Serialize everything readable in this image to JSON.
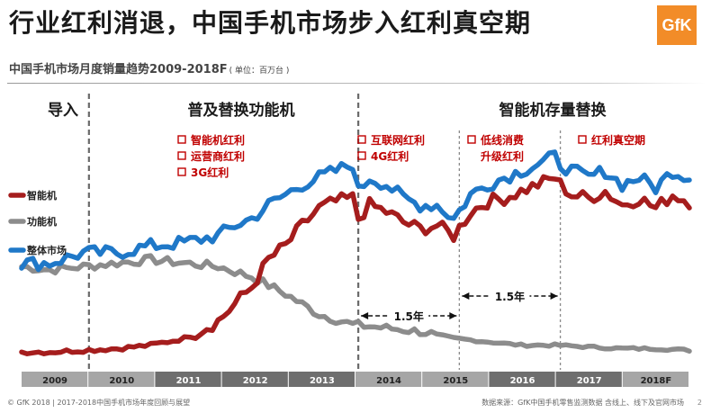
{
  "header": {
    "title": "行业红利消退，中国手机市场步入红利真空期",
    "subtitle": "中国手机市场月度销量趋势2009-2018F",
    "unit": "( 单位：百万台 )",
    "logo_text": "GfK"
  },
  "footer": {
    "left": "© GfK 2018 | 2017-2018中国手机市场年度回顾与展望",
    "right": "数据来源：GfK中国手机零售监测数据 含线上、线下及官网市场",
    "page": "2"
  },
  "phases": [
    "导入",
    "普及替换功能机",
    "智能机存量替换"
  ],
  "drivers": [
    {
      "items": [
        "智能机红利",
        "运营商红利",
        "3G红利"
      ]
    },
    {
      "items": [
        "互联网红利",
        "4G红利"
      ]
    },
    {
      "items": [
        "低线消费",
        "升级红利"
      ]
    },
    {
      "items": [
        "红利真空期"
      ]
    }
  ],
  "intervals": [
    "1.5年",
    "1.5年"
  ],
  "colors": {
    "smart": "#a51d1d",
    "feature": "#8c8c8c",
    "total": "#1f78c8",
    "accent": "#c00000",
    "axis_dark": "#6e6e6e",
    "axis_light": "#a6a6a6"
  },
  "chart_data": {
    "type": "line",
    "title": "中国手机市场月度销量趋势2009-2018F",
    "x_categories": [
      "2009",
      "2010",
      "2011",
      "2012",
      "2013",
      "2014",
      "2015",
      "2016",
      "2017",
      "2018F"
    ],
    "y_note": "estimated monthly sales (millions of units); no y-axis printed",
    "ylim": [
      0,
      65
    ],
    "grid": false,
    "legend_position": "left",
    "phase_dividers": [
      "2010-01",
      "2014-01"
    ],
    "annotation_dividers": [
      "2015-07",
      "2017-01"
    ],
    "series": [
      {
        "name": "智能机",
        "points": [
          [
            "2009-01",
            1
          ],
          [
            "2009-06",
            1
          ],
          [
            "2009-12",
            1.5
          ],
          [
            "2010-06",
            2
          ],
          [
            "2010-12",
            3
          ],
          [
            "2011-06",
            5
          ],
          [
            "2011-12",
            10
          ],
          [
            "2012-03",
            15
          ],
          [
            "2012-06",
            20
          ],
          [
            "2012-09",
            28
          ],
          [
            "2012-12",
            32
          ],
          [
            "2013-03",
            38
          ],
          [
            "2013-06",
            43
          ],
          [
            "2013-09",
            45
          ],
          [
            "2013-12",
            46
          ],
          [
            "2014-01",
            40
          ],
          [
            "2014-03",
            44
          ],
          [
            "2014-06",
            42
          ],
          [
            "2014-09",
            39
          ],
          [
            "2014-12",
            37
          ],
          [
            "2015-03",
            38
          ],
          [
            "2015-06",
            35
          ],
          [
            "2015-09",
            42
          ],
          [
            "2015-12",
            45
          ],
          [
            "2016-03",
            46
          ],
          [
            "2016-06",
            48
          ],
          [
            "2016-09",
            50
          ],
          [
            "2016-12",
            52
          ],
          [
            "2017-01",
            50
          ],
          [
            "2017-03",
            47
          ],
          [
            "2017-06",
            46
          ],
          [
            "2017-09",
            48
          ],
          [
            "2017-12",
            44
          ],
          [
            "2018-03",
            46
          ],
          [
            "2018-06",
            43
          ],
          [
            "2018-09",
            47
          ],
          [
            "2018-12",
            45
          ]
        ]
      },
      {
        "name": "功能机",
        "points": [
          [
            "2009-01",
            26
          ],
          [
            "2009-06",
            25
          ],
          [
            "2009-12",
            26
          ],
          [
            "2010-06",
            27
          ],
          [
            "2010-12",
            28
          ],
          [
            "2011-06",
            27
          ],
          [
            "2011-12",
            26
          ],
          [
            "2012-06",
            23
          ],
          [
            "2012-12",
            18
          ],
          [
            "2013-06",
            12
          ],
          [
            "2013-12",
            9
          ],
          [
            "2014-06",
            8
          ],
          [
            "2014-12",
            7
          ],
          [
            "2015-06",
            5
          ],
          [
            "2015-12",
            4
          ],
          [
            "2016-06",
            3
          ],
          [
            "2016-12",
            3
          ],
          [
            "2017-06",
            2.5
          ],
          [
            "2017-12",
            2
          ],
          [
            "2018-06",
            2
          ],
          [
            "2018-12",
            1.5
          ]
        ]
      },
      {
        "name": "整体市场",
        "points": [
          [
            "2009-01",
            27
          ],
          [
            "2009-06",
            27
          ],
          [
            "2009-12",
            30
          ],
          [
            "2010-06",
            30
          ],
          [
            "2010-12",
            32
          ],
          [
            "2011-06",
            33
          ],
          [
            "2011-12",
            35
          ],
          [
            "2012-03",
            38
          ],
          [
            "2012-06",
            40
          ],
          [
            "2012-09",
            44
          ],
          [
            "2012-12",
            47
          ],
          [
            "2013-03",
            50
          ],
          [
            "2013-06",
            52
          ],
          [
            "2013-09",
            54
          ],
          [
            "2013-12",
            56
          ],
          [
            "2014-01",
            48
          ],
          [
            "2014-03",
            52
          ],
          [
            "2014-06",
            50
          ],
          [
            "2014-09",
            46
          ],
          [
            "2014-12",
            44
          ],
          [
            "2015-03",
            44
          ],
          [
            "2015-06",
            40
          ],
          [
            "2015-09",
            47
          ],
          [
            "2015-12",
            50
          ],
          [
            "2016-03",
            52
          ],
          [
            "2016-06",
            54
          ],
          [
            "2016-09",
            56
          ],
          [
            "2016-12",
            58
          ],
          [
            "2017-01",
            56
          ],
          [
            "2017-03",
            54
          ],
          [
            "2017-06",
            52
          ],
          [
            "2017-09",
            54
          ],
          [
            "2017-12",
            50
          ],
          [
            "2018-03",
            52
          ],
          [
            "2018-06",
            49
          ],
          [
            "2018-09",
            54
          ],
          [
            "2018-12",
            52
          ]
        ]
      }
    ]
  }
}
